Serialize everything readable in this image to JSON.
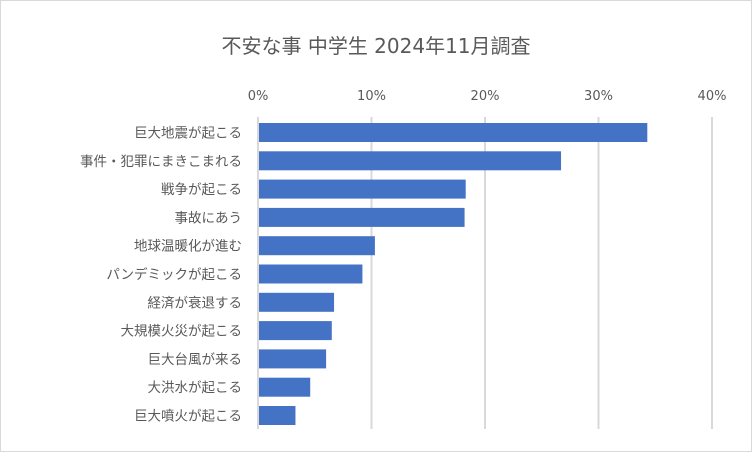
{
  "chart_data": {
    "type": "bar",
    "orientation": "horizontal",
    "title": "不安な事 中学生 2024年11月調査",
    "categories": [
      "巨大地震が起こる",
      "事件・犯罪にまきこまれる",
      "戦争が起こる",
      "事故にあう",
      "地球温暖化が進む",
      "パンデミックが起こる",
      "経済が衰退する",
      "大規模火災が起こる",
      "巨大台風が来る",
      "大洪水が起こる",
      "巨大噴火が起こる"
    ],
    "values": [
      34.3,
      26.7,
      18.3,
      18.2,
      10.3,
      9.2,
      6.7,
      6.5,
      6.0,
      4.6,
      3.3
    ],
    "unit": "%",
    "xlim": [
      0,
      40
    ],
    "xticks": [
      "0%",
      "10%",
      "20%",
      "30%",
      "40%"
    ],
    "xaxis_position": "top",
    "grid": true,
    "bar_color": "#4472c4",
    "grid_color": "#d9d9d9"
  }
}
